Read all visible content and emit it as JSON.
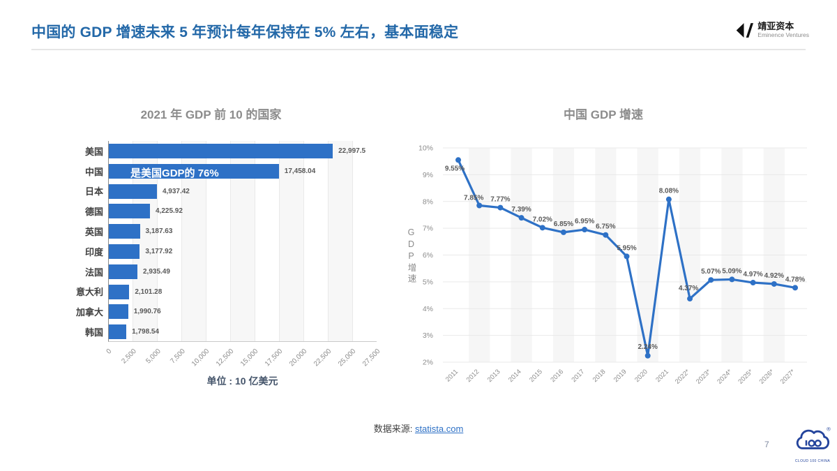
{
  "header": {
    "title": "中国的 GDP 增速未来 5 年预计每年保持在 5% 左右，基本面稳定",
    "logo": {
      "name": "靖亚资本",
      "subtitle": "Eminence Ventures"
    }
  },
  "footer": {
    "source_label": "数据来源:",
    "source_link": "statista.com",
    "page_number": "7",
    "cloud_logo_caption": "CLOUD 100 CHINA",
    "registered_mark": "®"
  },
  "colors": {
    "accent": "#2e71c6",
    "title_blue": "#2368a8",
    "cloud_logo_blue": "#24449c"
  },
  "chart_data": [
    {
      "type": "bar",
      "orientation": "horizontal",
      "title": "2021 年 GDP 前 10 的国家",
      "categories": [
        "美国",
        "中国",
        "日本",
        "德国",
        "英国",
        "印度",
        "法国",
        "意大利",
        "加拿大",
        "韩国"
      ],
      "values": [
        22997.5,
        17458.04,
        4937.42,
        4225.92,
        3187.63,
        3177.92,
        2935.49,
        2101.28,
        1990.76,
        1798.54
      ],
      "value_labels": [
        "22,997.5",
        "17,458.04",
        "4,937.42",
        "4,225.92",
        "3,187.63",
        "3,177.92",
        "2,935.49",
        "2,101.28",
        "1,990.76",
        "1,798.54"
      ],
      "annotation": {
        "text": "是美国GDP的 76%",
        "target_category": "中国"
      },
      "x_ticks": [
        "0",
        "2,500",
        "5,000",
        "7,500",
        "10,000",
        "12,500",
        "15,000",
        "17,500",
        "20,000",
        "22,500",
        "25,000",
        "27,500"
      ],
      "xlim": [
        0,
        27500
      ],
      "grid": "vertical",
      "footnote": "单位 : 10 亿美元"
    },
    {
      "type": "line",
      "title": "中国 GDP 增速",
      "x": [
        "2011",
        "2012",
        "2013",
        "2014",
        "2015",
        "2016",
        "2017",
        "2018",
        "2019",
        "2020",
        "2021",
        "2022*",
        "2023*",
        "2024*",
        "2025*",
        "2026*",
        "2027*"
      ],
      "values": [
        9.55,
        7.85,
        7.77,
        7.39,
        7.02,
        6.85,
        6.95,
        6.75,
        5.95,
        2.24,
        8.08,
        4.37,
        5.07,
        5.09,
        4.97,
        4.92,
        4.78
      ],
      "point_labels": [
        "9.55%",
        "7.85%",
        "7.77%",
        "7.39%",
        "7.02%",
        "6.85%",
        "6.95%",
        "6.75%",
        "5.95%",
        "2.24%",
        "8.08%",
        "4.37%",
        "5.07%",
        "5.09%",
        "4.97%",
        "4.92%",
        "4.78%"
      ],
      "ylabel": "GDP增速",
      "y_ticks": [
        "10%",
        "9%",
        "8%",
        "7%",
        "6%",
        "5%",
        "4%",
        "3%",
        "2%"
      ],
      "ylim": [
        2,
        10
      ],
      "grid": "horizontal",
      "legend": "none"
    }
  ]
}
